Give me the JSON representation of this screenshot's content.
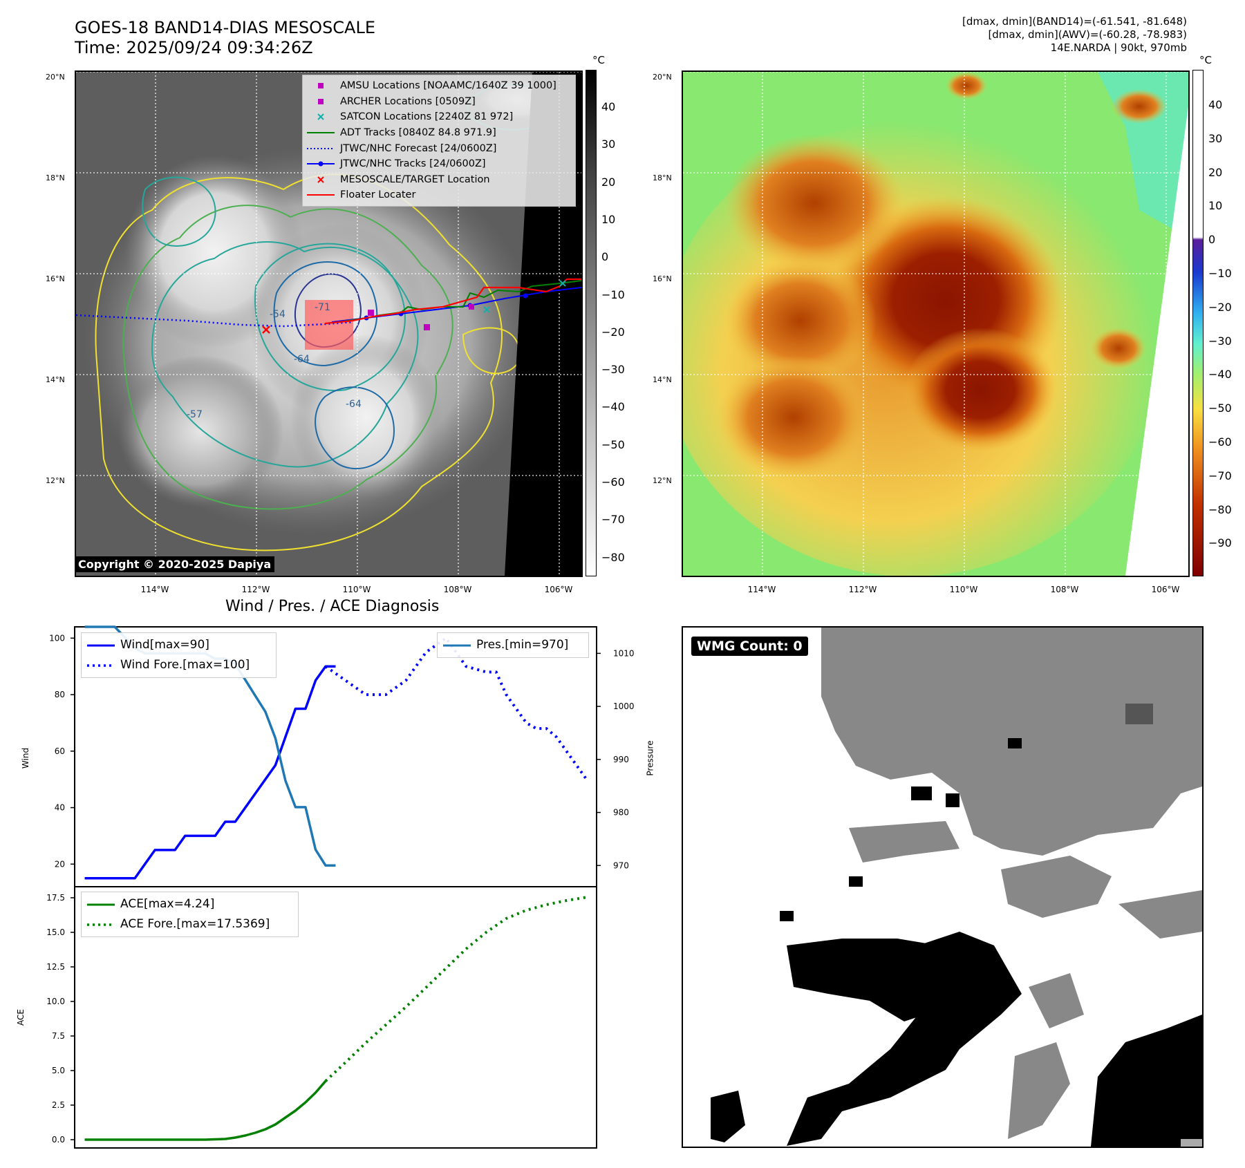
{
  "header": {
    "title_line1": "GOES-18 BAND14-DIAS MESOSCALE",
    "title_line2": "Time: 2025/09/24 09:34:26Z",
    "info_line1": "[dmax, dmin](BAND14)=(-61.541, -81.648)",
    "info_line2": "[dmax, dmin](AWV)=(-60.28, -78.983)",
    "info_line3": "14E.NARDA | 90kt, 970mb"
  },
  "map": {
    "lat_labels": [
      "20°N",
      "18°N",
      "16°N",
      "14°N",
      "12°N"
    ],
    "lon_labels": [
      "114°W",
      "112°W",
      "110°W",
      "108°W",
      "106°W"
    ],
    "unit": "°C",
    "copyright": "Copyright © 2020-2025 Dapiya",
    "contour_labels": [
      "-64",
      "-64",
      "-57",
      "-54",
      "-71"
    ],
    "legend": [
      {
        "label": "AMSU Locations [NOAAMC/1640Z 39 1000]",
        "symbol": "square",
        "color": "#c000c0"
      },
      {
        "label": "ARCHER Locations [0509Z]",
        "symbol": "square",
        "color": "#c000c0"
      },
      {
        "label": "SATCON Locations [2240Z 81 972]",
        "symbol": "x",
        "color": "#10b0b0"
      },
      {
        "label": "ADT Tracks [0840Z 84.8 971.9]",
        "symbol": "line",
        "color": "#008000"
      },
      {
        "label": "JTWC/NHC Forecast [24/0600Z]",
        "symbol": "dotted",
        "color": "#0000ff"
      },
      {
        "label": "JTWC/NHC Tracks [24/0600Z]",
        "symbol": "linedot",
        "color": "#0000ff"
      },
      {
        "label": "MESOSCALE/TARGET Location",
        "symbol": "x",
        "color": "#ff0000"
      },
      {
        "label": "Floater Locater",
        "symbol": "line",
        "color": "#ff0000"
      }
    ]
  },
  "colorbar_gray": {
    "ticks": [
      "40",
      "30",
      "20",
      "10",
      "0",
      "−10",
      "−20",
      "−30",
      "−40",
      "−50",
      "−60",
      "−70",
      "−80"
    ]
  },
  "colorbar_color": {
    "ticks": [
      "40",
      "30",
      "20",
      "10",
      "0",
      "−10",
      "−20",
      "−30",
      "−40",
      "−50",
      "−60",
      "−70",
      "−80",
      "−90"
    ]
  },
  "diag_title": "Wind / Pres. / ACE Diagnosis",
  "chart_data": [
    {
      "type": "line",
      "title": "Wind / Pres. / ACE Diagnosis",
      "ylabel": "Wind",
      "y2label": "Pressure",
      "ylim": [
        12,
        104
      ],
      "y2lim": [
        966,
        1015
      ],
      "yticks": [
        "100",
        "80",
        "60",
        "40",
        "20"
      ],
      "y2ticks": [
        "1010",
        "1000",
        "990",
        "980",
        "970"
      ],
      "series": [
        {
          "name": "Wind[max=90]",
          "axis": "left",
          "color": "#0000ff",
          "style": "solid",
          "x": [
            0,
            1,
            2,
            3,
            4,
            5,
            6,
            7,
            8,
            9,
            10,
            11,
            12,
            13,
            14,
            15,
            16,
            17,
            18,
            19,
            20,
            21,
            22,
            23,
            24,
            25
          ],
          "y": [
            15,
            15,
            15,
            15,
            15,
            15,
            20,
            25,
            25,
            25,
            30,
            30,
            30,
            30,
            35,
            35,
            40,
            45,
            50,
            55,
            65,
            75,
            75,
            85,
            90,
            90
          ]
        },
        {
          "name": "Wind Fore.[max=100]",
          "axis": "left",
          "color": "#0000ff",
          "style": "dotted",
          "x": [
            24,
            26,
            28,
            30,
            32,
            34,
            36,
            38,
            40,
            41,
            42,
            43,
            44,
            45,
            46,
            47,
            48,
            49,
            50
          ],
          "y": [
            90,
            85,
            80,
            80,
            85,
            95,
            100,
            90,
            88,
            88,
            80,
            75,
            70,
            68,
            68,
            65,
            60,
            55,
            50
          ]
        },
        {
          "name": "Pres.[min=970]",
          "axis": "right",
          "color": "#1f77b4",
          "style": "solid",
          "x": [
            0,
            1,
            2,
            3,
            4,
            5,
            6,
            7,
            8,
            9,
            10,
            11,
            12,
            13,
            14,
            15,
            16,
            17,
            18,
            19,
            20,
            21,
            22,
            23,
            24,
            25
          ],
          "y": [
            1015,
            1015,
            1015,
            1015,
            1013,
            1011,
            1010,
            1010,
            1010,
            1010,
            1010,
            1010,
            1010,
            1009,
            1009,
            1008,
            1005,
            1002,
            999,
            994,
            986,
            981,
            981,
            973,
            970,
            970
          ]
        }
      ]
    },
    {
      "type": "line",
      "ylabel": "ACE",
      "ylim": [
        -0.6,
        18.3
      ],
      "yticks": [
        "17.5",
        "15.0",
        "12.5",
        "10.0",
        "7.5",
        "5.0",
        "2.5",
        "0.0"
      ],
      "series": [
        {
          "name": "ACE[max=4.24]",
          "color": "#008000",
          "style": "solid",
          "x": [
            0,
            2,
            4,
            6,
            8,
            10,
            12,
            14,
            15,
            16,
            17,
            18,
            19,
            20,
            21,
            22,
            23,
            24
          ],
          "y": [
            0,
            0,
            0,
            0,
            0,
            0,
            0,
            0.05,
            0.15,
            0.3,
            0.5,
            0.75,
            1.1,
            1.6,
            2.1,
            2.7,
            3.4,
            4.24
          ]
        },
        {
          "name": "ACE Fore.[max=17.5369]",
          "color": "#008000",
          "style": "dotted",
          "x": [
            24,
            26,
            28,
            30,
            32,
            34,
            36,
            38,
            40,
            42,
            44,
            46,
            48,
            50
          ],
          "y": [
            4.24,
            5.6,
            7.0,
            8.3,
            9.6,
            11.0,
            12.4,
            13.8,
            15.0,
            16.0,
            16.6,
            17.0,
            17.3,
            17.5369
          ]
        }
      ]
    }
  ],
  "wmg": {
    "label": "WMG Count: 0"
  }
}
